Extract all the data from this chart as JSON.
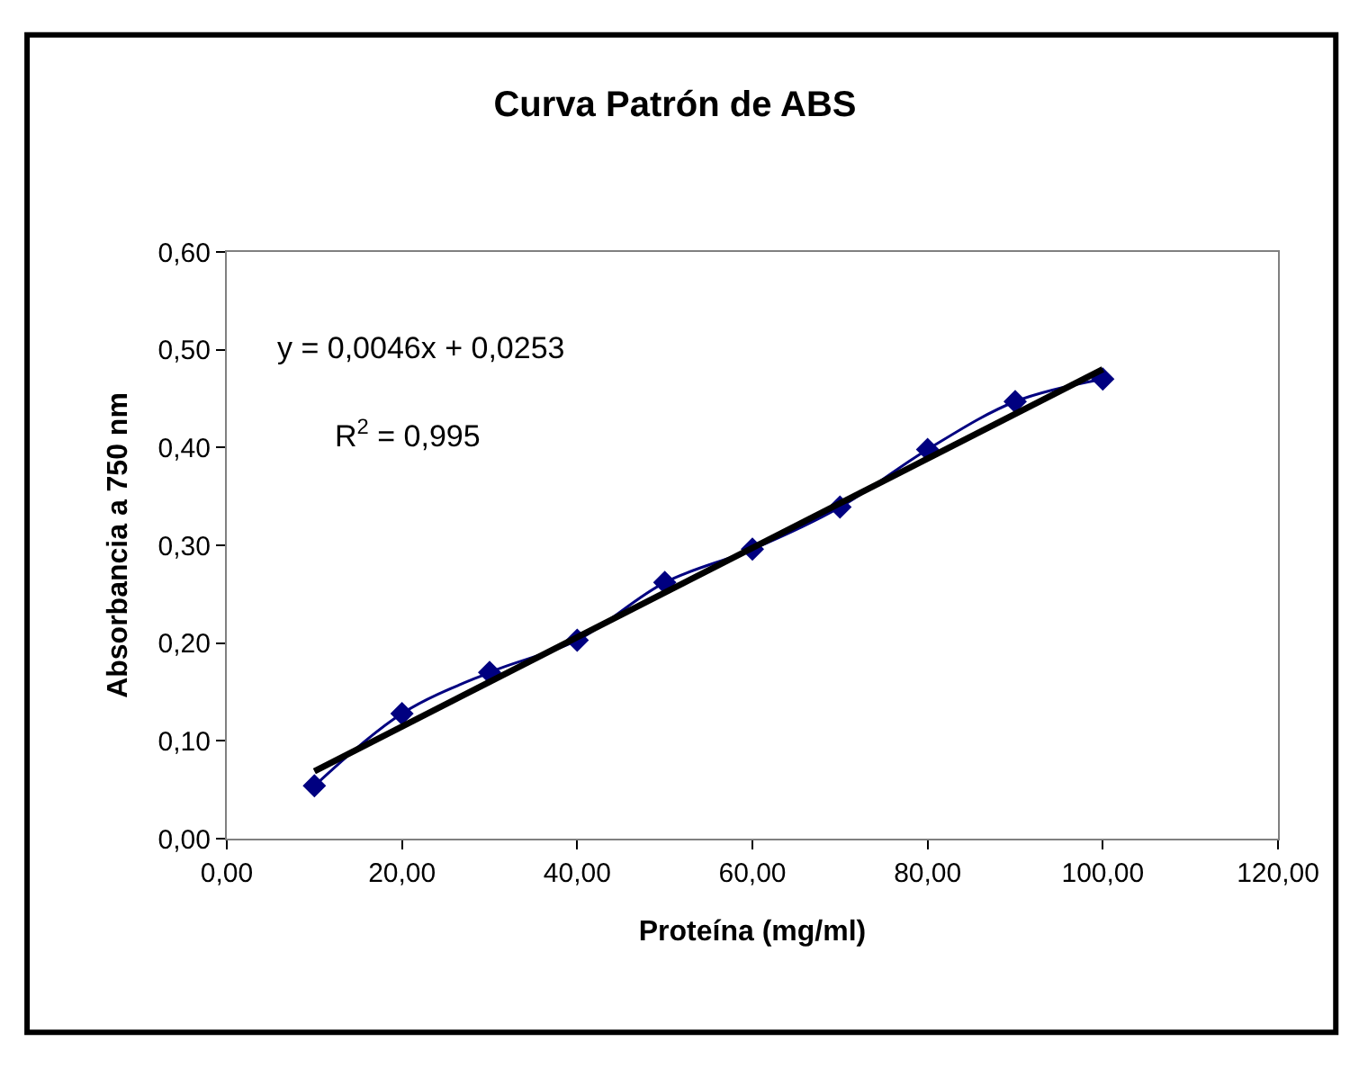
{
  "chart_data": {
    "type": "line",
    "title": "Curva Patrón de ABS",
    "xlabel": "Proteína (mg/ml)",
    "ylabel": "Absorbancia a 750 nm",
    "x": [
      10,
      20,
      30,
      40,
      50,
      60,
      70,
      80,
      90,
      100
    ],
    "series": [
      {
        "color": "#000080",
        "marker": "diamond",
        "values": [
          0.054,
          0.128,
          0.17,
          0.203,
          0.262,
          0.296,
          0.339,
          0.398,
          0.447,
          0.47
        ]
      },
      {
        "color": "#000000",
        "marker": "none",
        "x": [
          10,
          100
        ],
        "values": [
          0.069,
          0.48
        ]
      }
    ],
    "annotations": [
      "y = 0,0046x + 0,0253",
      "R$^{2}$ = 0,995"
    ],
    "xlim": [
      0,
      120
    ],
    "ylim": [
      0,
      0.6
    ],
    "xticks": [
      {
        "value": 0,
        "label": "0,00"
      },
      {
        "value": 20,
        "label": "20,00"
      },
      {
        "value": 40,
        "label": "40,00"
      },
      {
        "value": 60,
        "label": "60,00"
      },
      {
        "value": 80,
        "label": "80,00"
      },
      {
        "value": 100,
        "label": "100,00"
      },
      {
        "value": 120,
        "label": "120,00"
      }
    ],
    "yticks": [
      {
        "value": 0,
        "label": "0,00"
      },
      {
        "value": 0.1,
        "label": "0,10"
      },
      {
        "value": 0.2,
        "label": "0,20"
      },
      {
        "value": 0.3,
        "label": "0,30"
      },
      {
        "value": 0.4,
        "label": "0,40"
      },
      {
        "value": 0.5,
        "label": "0,50"
      },
      {
        "value": 0.6,
        "label": "0,60"
      }
    ]
  }
}
